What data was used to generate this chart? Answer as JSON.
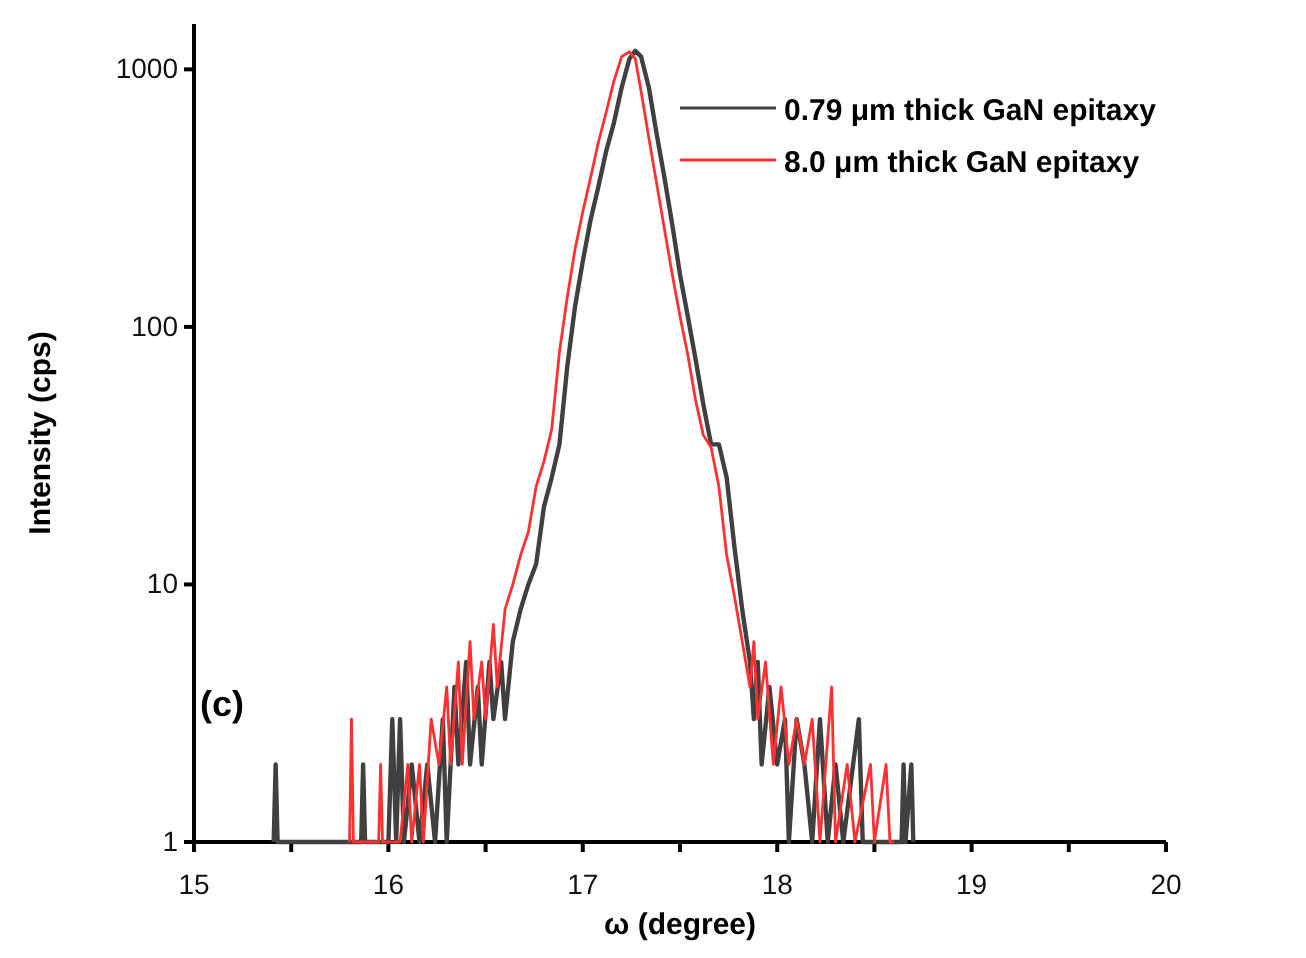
{
  "chart_data": {
    "type": "line",
    "xlabel": "ω (degree)",
    "ylabel": "Intensity (cps)",
    "annotations": [
      "(c)"
    ],
    "log": "y",
    "xlim": [
      15,
      20
    ],
    "xticks": [
      15,
      {
        "value": 15.5,
        "label": null
      },
      16,
      {
        "value": 16.5,
        "label": null
      },
      17,
      {
        "value": 17.5,
        "label": null
      },
      18,
      {
        "value": 18.5,
        "label": null
      },
      19,
      {
        "value": 19.5,
        "label": null
      },
      20
    ],
    "ylim": [
      1,
      1500
    ],
    "yticks": [
      1,
      10,
      100,
      1000
    ],
    "grid": false,
    "legend": "top right",
    "marker": "none",
    "line_style": "solid",
    "series": [
      {
        "name": "0.79 μm thick GaN epitaxy",
        "color": "#404040",
        "x": [
          15.41,
          15.42,
          15.43,
          15.86,
          15.87,
          15.88,
          16.0,
          16.02,
          16.04,
          16.06,
          16.08,
          16.12,
          16.16,
          16.2,
          16.24,
          16.28,
          16.3,
          16.34,
          16.36,
          16.4,
          16.42,
          16.46,
          16.48,
          16.52,
          16.54,
          16.58,
          16.6,
          16.64,
          16.68,
          16.72,
          16.76,
          16.8,
          16.84,
          16.88,
          16.92,
          16.96,
          17.0,
          17.04,
          17.08,
          17.12,
          17.16,
          17.2,
          17.24,
          17.27,
          17.3,
          17.34,
          17.38,
          17.42,
          17.46,
          17.5,
          17.54,
          17.58,
          17.62,
          17.66,
          17.7,
          17.74,
          17.78,
          17.82,
          17.86,
          17.88,
          17.9,
          17.92,
          17.96,
          18.0,
          18.04,
          18.06,
          18.1,
          18.14,
          18.18,
          18.22,
          18.26,
          18.3,
          18.34,
          18.42,
          18.44,
          18.64,
          18.65,
          18.66,
          18.69,
          18.7
        ],
        "values": [
          1,
          2,
          1,
          1,
          2,
          1,
          1,
          3,
          1,
          3,
          1,
          2,
          1,
          2,
          1,
          3,
          1,
          4,
          2,
          5,
          2,
          4,
          2,
          5,
          3,
          5,
          3,
          6,
          8,
          10,
          12,
          20,
          26,
          35,
          70,
          120,
          180,
          260,
          350,
          480,
          620,
          850,
          1100,
          1180,
          1120,
          850,
          560,
          380,
          250,
          160,
          110,
          75,
          50,
          35,
          35,
          26,
          14,
          8,
          5,
          3,
          5,
          2,
          4,
          2,
          3,
          1,
          3,
          2,
          1,
          3,
          1,
          2,
          1,
          3,
          1,
          1,
          2,
          1,
          2,
          1
        ]
      },
      {
        "name": "8.0 μm thick GaN epitaxy",
        "color": "#ff3030",
        "x": [
          15.8,
          15.81,
          15.82,
          15.95,
          15.96,
          15.97,
          16.06,
          16.1,
          16.12,
          16.16,
          16.18,
          16.22,
          16.26,
          16.3,
          16.32,
          16.36,
          16.38,
          16.42,
          16.44,
          16.48,
          16.5,
          16.54,
          16.56,
          16.6,
          16.64,
          16.68,
          16.72,
          16.76,
          16.8,
          16.84,
          16.88,
          16.92,
          16.96,
          17.0,
          17.04,
          17.08,
          17.12,
          17.16,
          17.2,
          17.24,
          17.27,
          17.3,
          17.34,
          17.38,
          17.42,
          17.46,
          17.5,
          17.54,
          17.58,
          17.62,
          17.66,
          17.7,
          17.74,
          17.78,
          17.82,
          17.86,
          17.88,
          17.9,
          17.94,
          17.98,
          18.02,
          18.06,
          18.1,
          18.14,
          18.18,
          18.22,
          18.28,
          18.3,
          18.36,
          18.4,
          18.48,
          18.5,
          18.56,
          18.58,
          18.6
        ],
        "values": [
          1,
          3,
          1,
          1,
          2,
          1,
          1,
          2,
          1,
          2,
          1,
          3,
          2,
          4,
          2,
          5,
          2,
          6,
          3,
          5,
          3,
          7,
          4,
          8,
          10,
          13,
          16,
          24,
          30,
          40,
          80,
          130,
          200,
          280,
          380,
          520,
          680,
          900,
          1120,
          1170,
          1100,
          820,
          540,
          360,
          240,
          160,
          110,
          78,
          52,
          38,
          34,
          24,
          13,
          9,
          6,
          4,
          6,
          3,
          5,
          2,
          4,
          2,
          3,
          2,
          3,
          1,
          4,
          1,
          2,
          1,
          2,
          1,
          2,
          1,
          1
        ]
      }
    ]
  }
}
